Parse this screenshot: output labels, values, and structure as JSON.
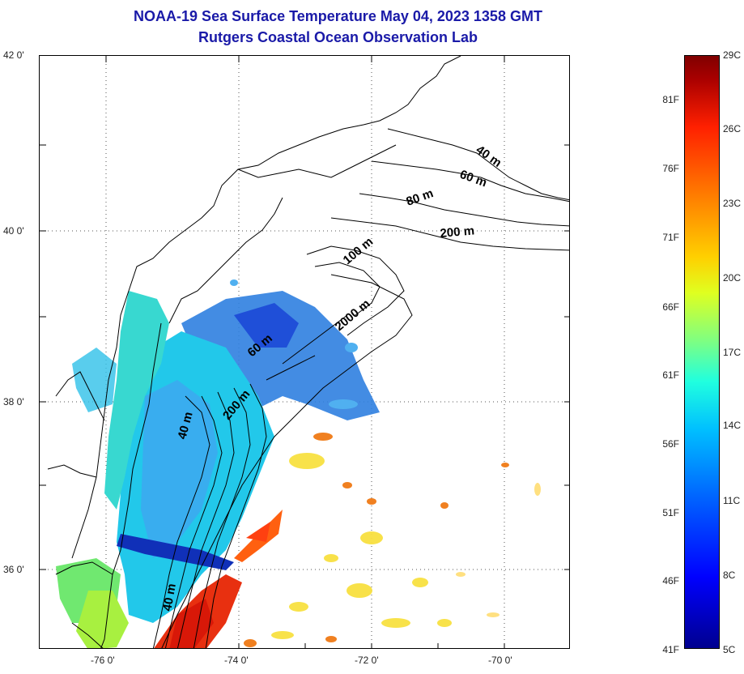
{
  "title": {
    "line1": "NOAA-19 Sea Surface Temperature May 04, 2023 1358 GMT",
    "line2": "Rutgers Coastal Ocean Observation Lab"
  },
  "axes": {
    "lat_labels": [
      "42 0'",
      "40 0'",
      "38 0'",
      "36 0'"
    ],
    "lon_labels": [
      "-76 0'",
      "-74 0'",
      "-72 0'",
      "-70 0'"
    ]
  },
  "isobaths": [
    "40 m",
    "60 m",
    "80 m",
    "200 m",
    "100 m",
    "2000 m",
    "60 m",
    "200 m",
    "40 m",
    "40 m"
  ],
  "colorbar": {
    "fahrenheit": [
      "81F",
      "76F",
      "71F",
      "66F",
      "61F",
      "56F",
      "51F",
      "46F",
      "41F"
    ],
    "celsius": [
      "29C",
      "26C",
      "23C",
      "20C",
      "17C",
      "14C",
      "11C",
      "8C",
      "5C"
    ],
    "colors": [
      "#00008f",
      "#0000ff",
      "#00c0ff",
      "#80ff80",
      "#ffd000",
      "#ff2000",
      "#800000"
    ]
  }
}
